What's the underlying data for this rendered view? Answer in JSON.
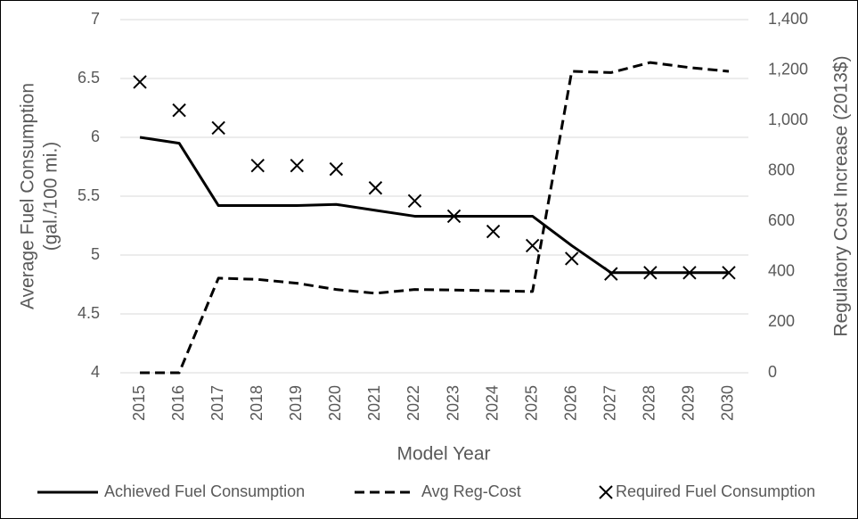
{
  "chart_data": {
    "type": "line",
    "x_label": "Model Year",
    "y_label": [
      "Average Fuel Consumption",
      "(gal./100 mi.)"
    ],
    "y2_label": "Regulatory Cost Increase (2013$)",
    "categories": [
      "2015",
      "2016",
      "2017",
      "2018",
      "2019",
      "2020",
      "2021",
      "2022",
      "2023",
      "2024",
      "2025",
      "2026",
      "2027",
      "2028",
      "2029",
      "2030"
    ],
    "ylim": [
      4,
      7
    ],
    "yticks": [
      4,
      4.5,
      5,
      5.5,
      6,
      6.5,
      7
    ],
    "y2lim": [
      0,
      1400
    ],
    "y2ticks": [
      0,
      200,
      400,
      600,
      800,
      {
        "value": 1000,
        "label": "1,000"
      },
      {
        "value": 1200,
        "label": "1,200"
      },
      {
        "value": 1400,
        "label": "1,400"
      }
    ],
    "grid": true,
    "legend": "bottom",
    "series": [
      {
        "name": "Achieved Fuel Consumption",
        "color": "#000000",
        "style": "solid",
        "values": [
          6.0,
          5.95,
          5.42,
          5.42,
          5.42,
          5.43,
          5.38,
          5.33,
          5.33,
          5.33,
          5.33,
          5.08,
          4.85,
          4.85,
          4.85,
          4.85
        ]
      },
      {
        "name": "Avg Reg-Cost",
        "color": "#000000",
        "style": "dashed",
        "axis": "y2",
        "values": [
          0,
          0,
          375,
          370,
          355,
          330,
          315,
          330,
          328,
          325,
          322,
          1195,
          1190,
          1230,
          1210,
          1195
        ]
      },
      {
        "name": "Required Fuel Consumption",
        "color": "#000000",
        "style": "marker",
        "values": [
          6.47,
          6.23,
          6.08,
          5.76,
          5.76,
          5.73,
          5.57,
          5.46,
          5.33,
          5.2,
          5.08,
          4.97,
          4.84,
          4.85,
          4.85,
          4.85
        ]
      }
    ]
  }
}
